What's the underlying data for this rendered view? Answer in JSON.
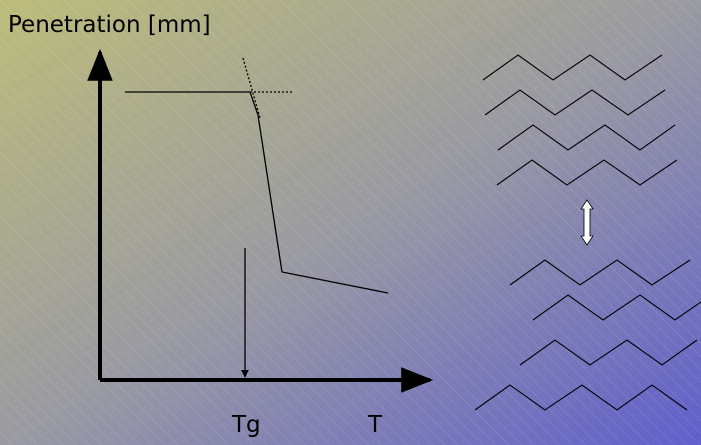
{
  "diagram": {
    "y_axis_label": "Penetration [mm]",
    "x_labels": {
      "tg": "Tg",
      "t": "T"
    }
  }
}
